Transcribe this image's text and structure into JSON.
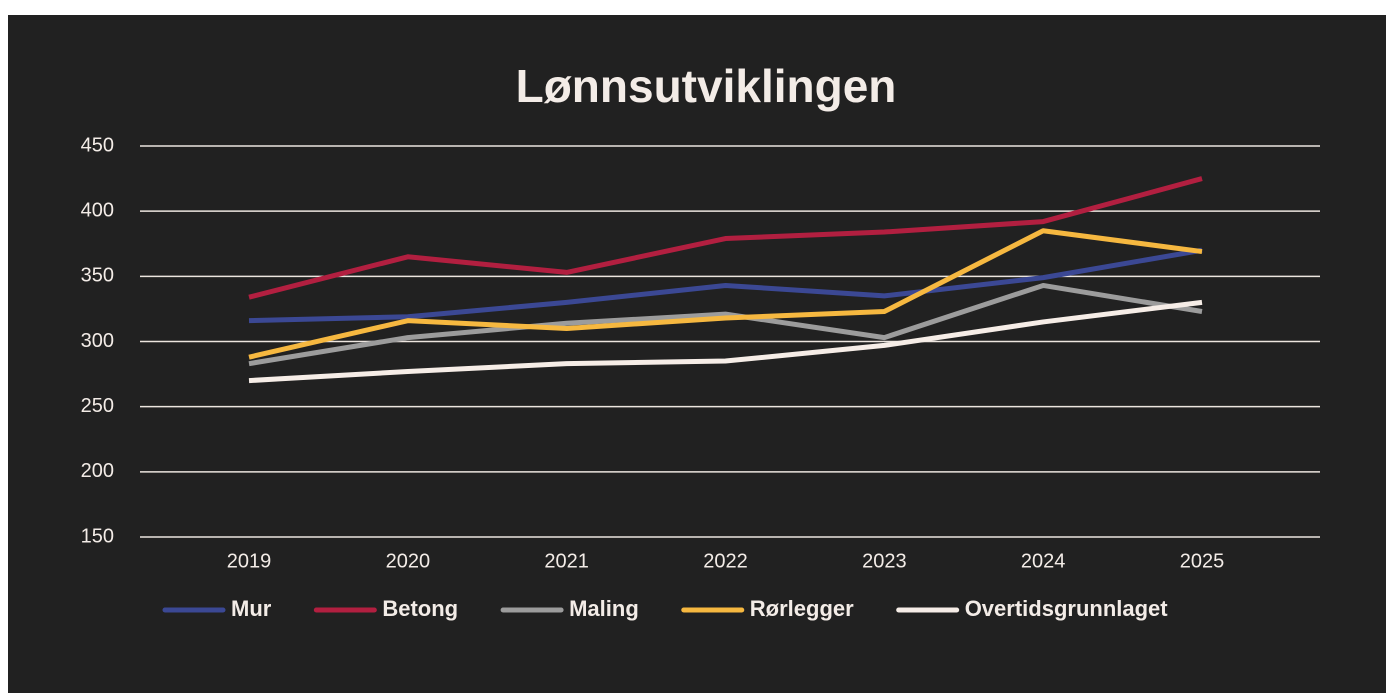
{
  "chart_data": {
    "type": "line",
    "title": "Lønnsutviklingen",
    "categories": [
      "2019",
      "2020",
      "2021",
      "2022",
      "2023",
      "2024",
      "2025"
    ],
    "series": [
      {
        "name": "Mur",
        "color": "#3b4894",
        "values": [
          316,
          319,
          330,
          343,
          335,
          349,
          370
        ]
      },
      {
        "name": "Betong",
        "color": "#b21f40",
        "values": [
          334,
          365,
          353,
          379,
          384,
          392,
          425
        ]
      },
      {
        "name": "Maling",
        "color": "#9c9c9c",
        "values": [
          283,
          303,
          314,
          321,
          303,
          343,
          323
        ]
      },
      {
        "name": "Rørlegger",
        "color": "#f6b840",
        "values": [
          288,
          316,
          310,
          318,
          323,
          385,
          369
        ]
      },
      {
        "name": "Overtidsgrunnlaget",
        "color": "#f6ede7",
        "values": [
          270,
          277,
          283,
          285,
          297,
          315,
          330
        ]
      }
    ],
    "ylim": [
      150,
      450
    ],
    "yticks": [
      150,
      200,
      250,
      300,
      350,
      400,
      450
    ],
    "grid": true
  }
}
